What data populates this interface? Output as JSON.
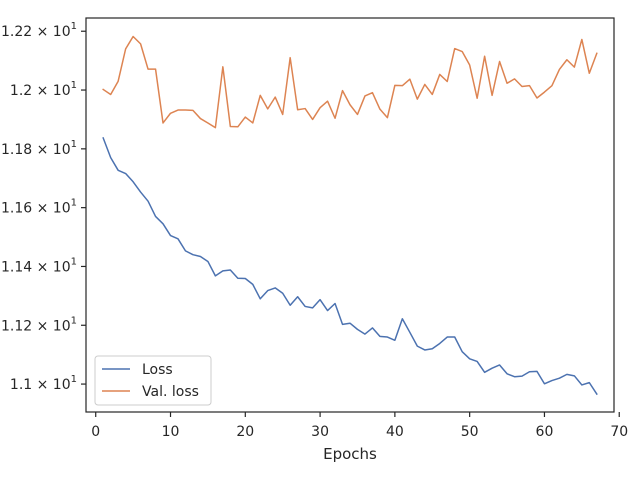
{
  "chart_data": {
    "type": "line",
    "title": "",
    "xlabel": "Epochs",
    "ylabel": "",
    "xlim": [
      -1.3,
      69.3
    ],
    "ylim": [
      10.905,
      12.245
    ],
    "grid": false,
    "legend_position": "lower-left",
    "x_ticks": [
      0,
      10,
      20,
      30,
      40,
      50,
      60,
      70
    ],
    "x_tick_labels": [
      "0",
      "10",
      "20",
      "30",
      "40",
      "50",
      "60",
      "70"
    ],
    "y_ticks": [
      11.0,
      11.2,
      11.4,
      11.6,
      11.8,
      12.0,
      12.2
    ],
    "y_tick_labels": [
      {
        "mant": "1.1",
        "exp": "1"
      },
      {
        "mant": "1.12",
        "exp": "1"
      },
      {
        "mant": "1.14",
        "exp": "1"
      },
      {
        "mant": "1.16",
        "exp": "1"
      },
      {
        "mant": "1.18",
        "exp": "1"
      },
      {
        "mant": "1.2",
        "exp": "1"
      },
      {
        "mant": "1.22",
        "exp": "1"
      }
    ],
    "x": [
      1,
      2,
      3,
      4,
      5,
      6,
      7,
      8,
      9,
      10,
      11,
      12,
      13,
      14,
      15,
      16,
      17,
      18,
      19,
      20,
      21,
      22,
      23,
      24,
      25,
      26,
      27,
      28,
      29,
      30,
      31,
      32,
      33,
      34,
      35,
      36,
      37,
      38,
      39,
      40,
      41,
      42,
      43,
      44,
      45,
      46,
      47,
      48,
      49,
      50,
      51,
      52,
      53,
      54,
      55,
      56,
      57,
      58,
      59,
      60,
      61,
      62,
      63,
      64,
      65,
      66,
      67
    ],
    "series": [
      {
        "name": "Loss",
        "color": "#4c72b0",
        "values": [
          11.837,
          11.77,
          11.727,
          11.716,
          11.688,
          11.653,
          11.622,
          11.57,
          11.545,
          11.505,
          11.494,
          11.453,
          11.44,
          11.434,
          11.417,
          11.368,
          11.385,
          11.388,
          11.36,
          11.359,
          11.339,
          11.29,
          11.318,
          11.327,
          11.309,
          11.268,
          11.297,
          11.264,
          11.259,
          11.287,
          11.25,
          11.274,
          11.203,
          11.207,
          11.186,
          11.17,
          11.191,
          11.162,
          11.16,
          11.149,
          11.222,
          11.176,
          11.129,
          11.116,
          11.12,
          11.138,
          11.16,
          11.16,
          11.11,
          11.086,
          11.077,
          11.04,
          11.054,
          11.065,
          11.035,
          11.025,
          11.027,
          11.042,
          11.043,
          11.001,
          11.012,
          11.02,
          11.033,
          11.028,
          10.997,
          11.005,
          10.966
        ]
      },
      {
        "name": "Val. loss",
        "color": "#dd8452",
        "values": [
          12.002,
          11.985,
          12.03,
          12.14,
          12.182,
          12.157,
          12.071,
          12.071,
          11.888,
          11.921,
          11.932,
          11.932,
          11.931,
          11.903,
          11.888,
          11.872,
          12.079,
          11.876,
          11.875,
          11.908,
          11.888,
          11.982,
          11.936,
          11.976,
          11.917,
          12.11,
          11.933,
          11.937,
          11.9,
          11.94,
          11.962,
          11.904,
          11.998,
          11.95,
          11.917,
          11.98,
          11.991,
          11.935,
          11.906,
          12.016,
          12.015,
          12.037,
          11.969,
          12.019,
          11.985,
          12.053,
          12.029,
          12.141,
          12.131,
          12.085,
          11.972,
          12.115,
          11.982,
          12.097,
          12.023,
          12.038,
          12.012,
          12.015,
          11.973,
          11.993,
          12.015,
          12.07,
          12.103,
          12.078,
          12.172,
          12.057,
          12.125
        ]
      }
    ]
  }
}
